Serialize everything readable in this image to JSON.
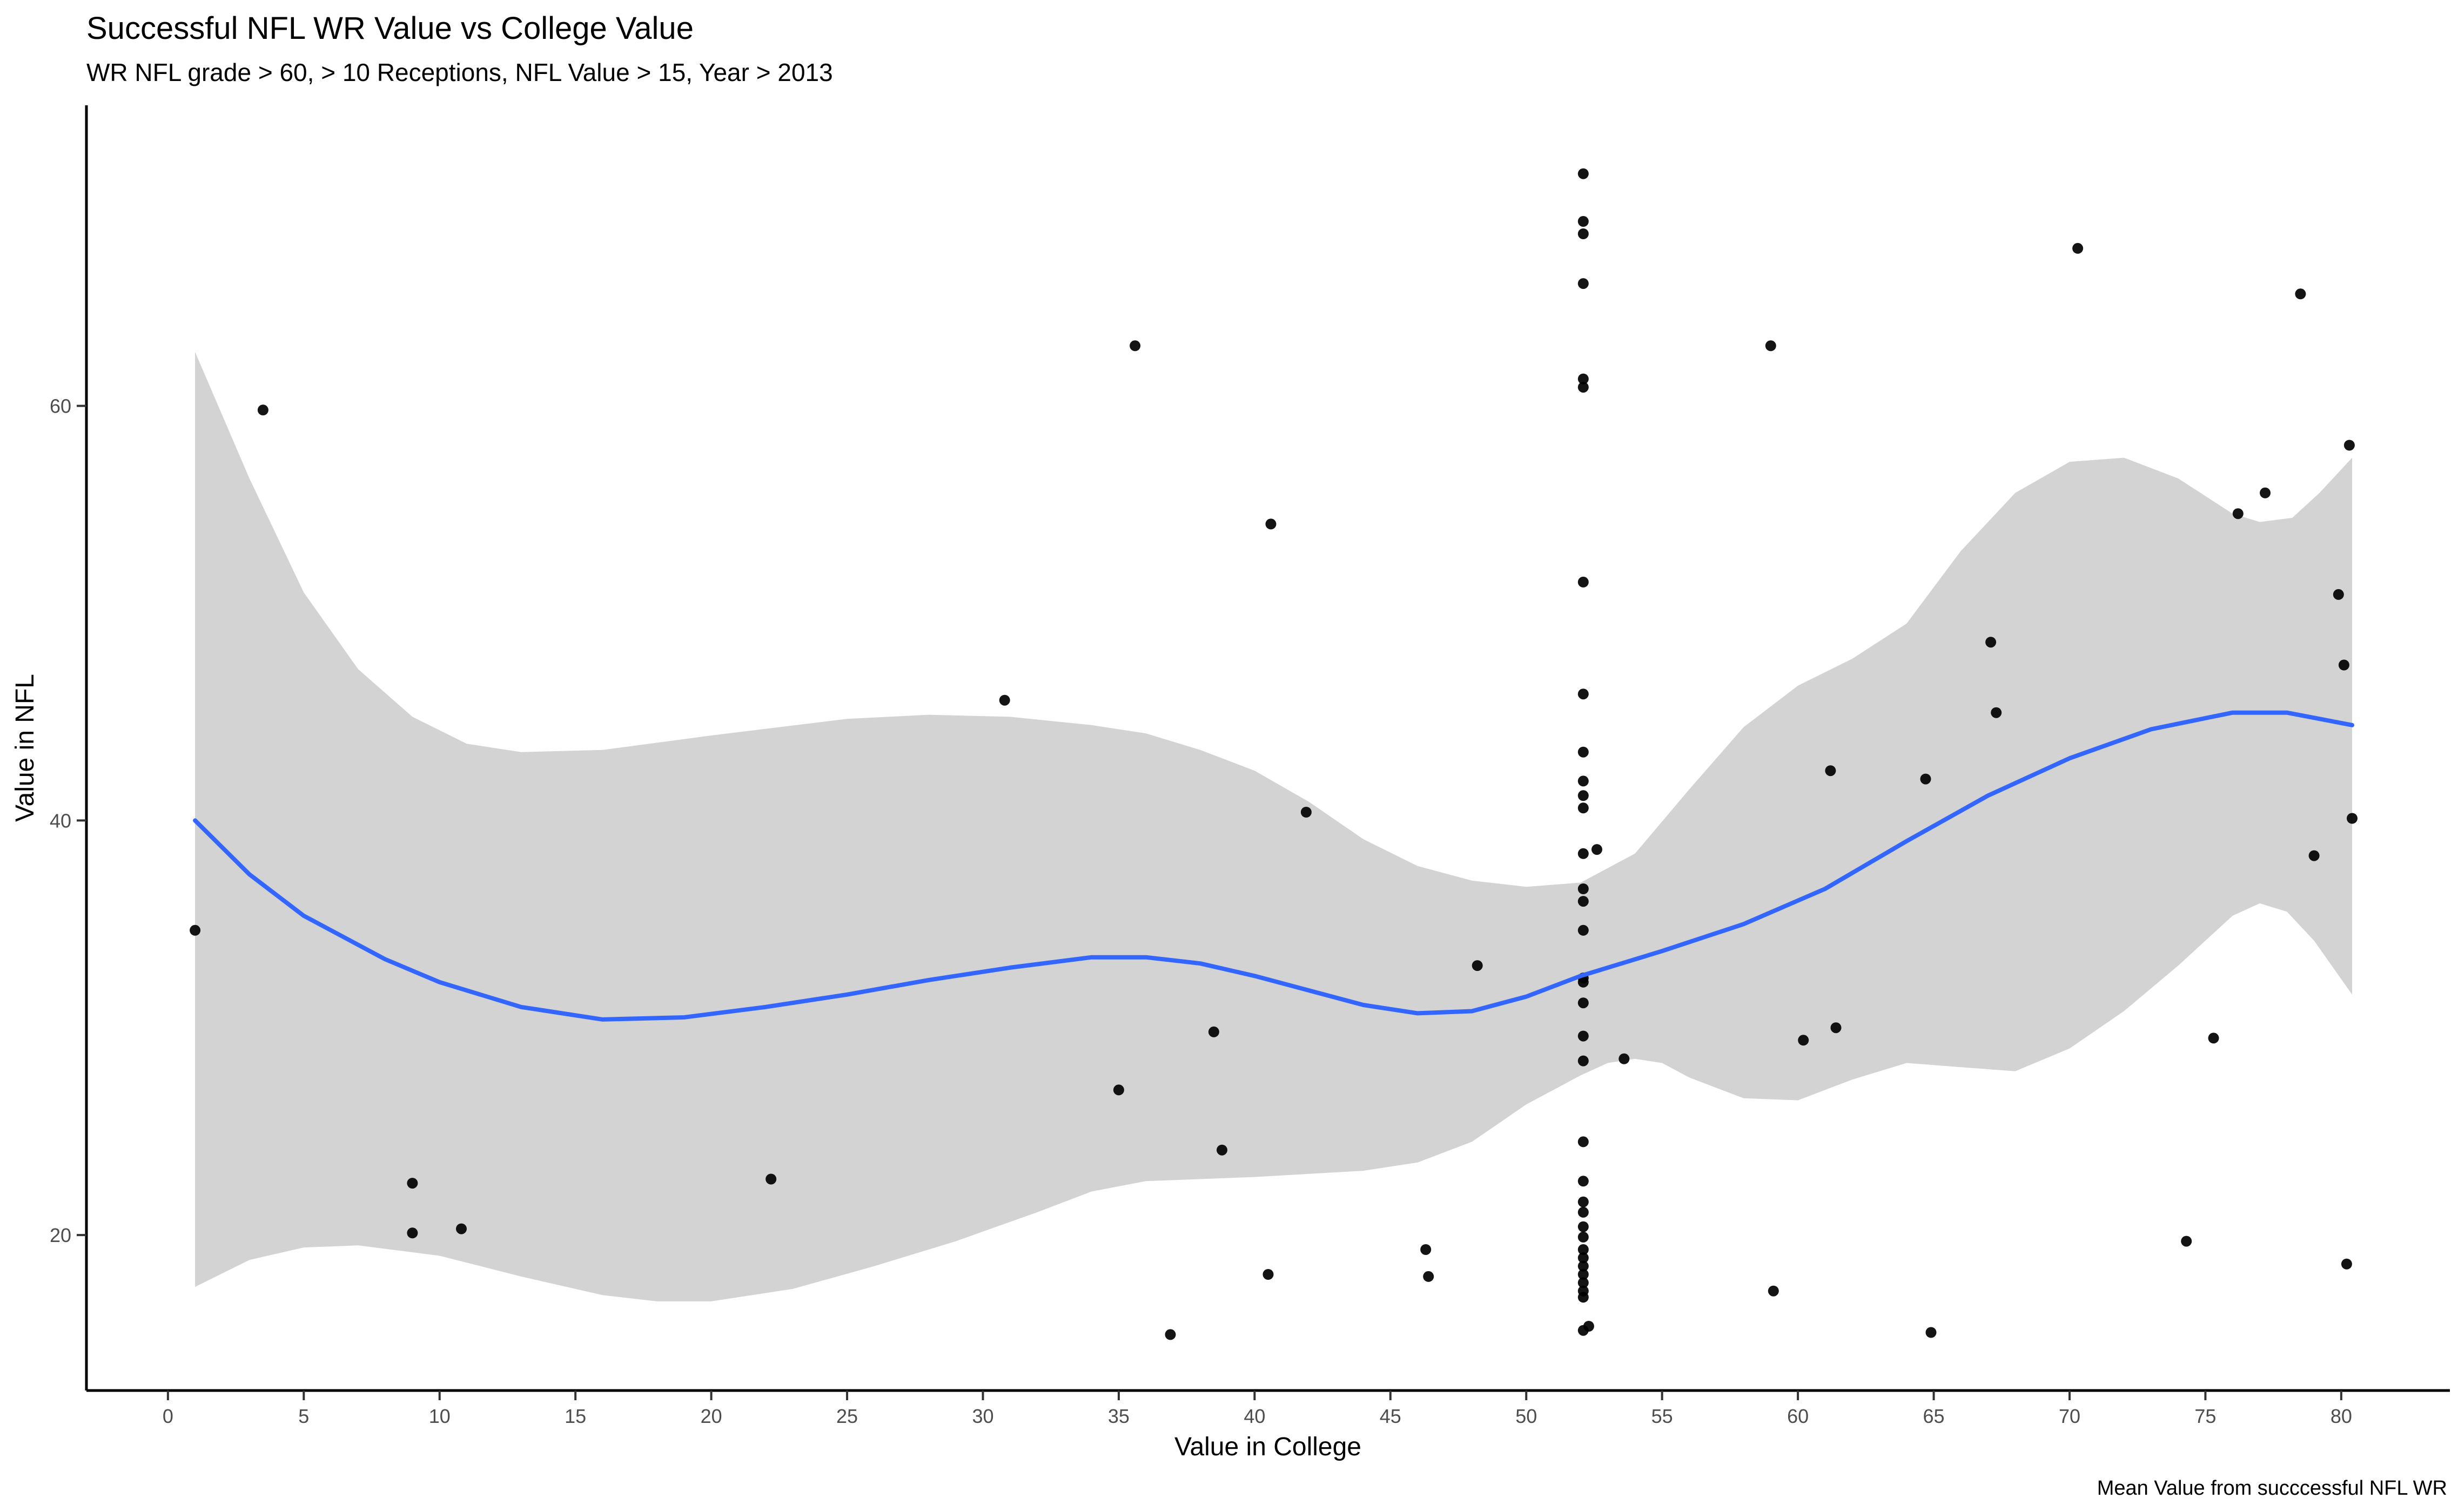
{
  "chart_data": {
    "type": "scatter",
    "title": "Successful NFL WR Value vs College Value",
    "subtitle": "WR NFL grade > 60, > 10 Receptions, NFL Value > 15, Year > 2013",
    "caption": "Mean Value from succcessful NFL WR",
    "xlabel": "Value in College",
    "ylabel": "Value in NFL",
    "xlim": [
      -3,
      84
    ],
    "ylim": [
      12.5,
      74.5
    ],
    "x_ticks": [
      0,
      5,
      10,
      15,
      20,
      25,
      30,
      35,
      40,
      45,
      50,
      55,
      60,
      65,
      70,
      75,
      80
    ],
    "y_ticks": [
      20,
      40,
      60
    ],
    "grid": false,
    "colors": {
      "points": "#000000",
      "smooth_line": "#3366FF",
      "confidence_band": "#D3D3D3"
    },
    "points": [
      [
        1,
        34.7
      ],
      [
        3.5,
        59.8
      ],
      [
        9,
        22.5
      ],
      [
        9,
        20.1
      ],
      [
        10.8,
        20.3
      ],
      [
        22.2,
        22.7
      ],
      [
        30.8,
        45.8
      ],
      [
        35,
        27.0
      ],
      [
        35.6,
        62.9
      ],
      [
        36.9,
        15.2
      ],
      [
        38.5,
        29.8
      ],
      [
        38.8,
        24.1
      ],
      [
        40.5,
        18.1
      ],
      [
        40.6,
        54.3
      ],
      [
        41.9,
        40.4
      ],
      [
        46.3,
        19.3
      ],
      [
        46.4,
        18.0
      ],
      [
        48.2,
        33.0
      ],
      [
        52.1,
        71.2
      ],
      [
        52.1,
        68.9
      ],
      [
        52.1,
        68.3
      ],
      [
        52.1,
        65.9
      ],
      [
        52.1,
        61.3
      ],
      [
        52.1,
        60.9
      ],
      [
        52.1,
        51.5
      ],
      [
        52.1,
        46.1
      ],
      [
        52.1,
        43.3
      ],
      [
        52.1,
        41.9
      ],
      [
        52.1,
        41.2
      ],
      [
        52.1,
        40.6
      ],
      [
        52.1,
        38.4
      ],
      [
        52.1,
        36.7
      ],
      [
        52.1,
        36.1
      ],
      [
        52.1,
        34.7
      ],
      [
        52.1,
        32.4
      ],
      [
        52.1,
        32.2
      ],
      [
        52.1,
        31.2
      ],
      [
        52.1,
        29.6
      ],
      [
        52.1,
        28.4
      ],
      [
        52.1,
        24.5
      ],
      [
        52.1,
        22.6
      ],
      [
        52.1,
        21.6
      ],
      [
        52.1,
        21.1
      ],
      [
        52.1,
        20.4
      ],
      [
        52.1,
        19.9
      ],
      [
        52.1,
        19.3
      ],
      [
        52.1,
        18.9
      ],
      [
        52.1,
        18.5
      ],
      [
        52.1,
        18.1
      ],
      [
        52.1,
        17.7
      ],
      [
        52.1,
        17.3
      ],
      [
        52.1,
        17.0
      ],
      [
        52.1,
        15.4
      ],
      [
        52.3,
        15.6
      ],
      [
        52.6,
        38.6
      ],
      [
        53.6,
        28.5
      ],
      [
        59.0,
        62.9
      ],
      [
        59.1,
        17.3
      ],
      [
        60.2,
        29.4
      ],
      [
        61.2,
        42.4
      ],
      [
        61.4,
        30.0
      ],
      [
        64.7,
        42.0
      ],
      [
        64.9,
        15.3
      ],
      [
        67.1,
        48.6
      ],
      [
        67.3,
        45.2
      ],
      [
        70.3,
        67.6
      ],
      [
        74.3,
        19.7
      ],
      [
        75.3,
        29.5
      ],
      [
        76.2,
        54.8
      ],
      [
        77.2,
        55.8
      ],
      [
        78.5,
        65.4
      ],
      [
        79.0,
        38.3
      ],
      [
        79.9,
        50.9
      ],
      [
        80.1,
        47.5
      ],
      [
        80.2,
        18.6
      ],
      [
        80.3,
        58.1
      ],
      [
        80.4,
        40.1
      ]
    ],
    "smooth_line": [
      [
        1,
        40.0
      ],
      [
        3,
        37.4
      ],
      [
        5,
        35.4
      ],
      [
        8,
        33.3
      ],
      [
        10,
        32.2
      ],
      [
        13,
        31.0
      ],
      [
        16,
        30.4
      ],
      [
        19,
        30.5
      ],
      [
        22,
        31.0
      ],
      [
        25,
        31.6
      ],
      [
        28,
        32.3
      ],
      [
        31,
        32.9
      ],
      [
        34,
        33.4
      ],
      [
        36,
        33.4
      ],
      [
        38,
        33.1
      ],
      [
        40,
        32.5
      ],
      [
        42,
        31.8
      ],
      [
        44,
        31.1
      ],
      [
        46,
        30.7
      ],
      [
        48,
        30.8
      ],
      [
        50,
        31.5
      ],
      [
        52,
        32.5
      ],
      [
        55,
        33.7
      ],
      [
        58,
        35.0
      ],
      [
        61,
        36.7
      ],
      [
        64,
        39.0
      ],
      [
        67,
        41.2
      ],
      [
        70,
        43.0
      ],
      [
        73,
        44.4
      ],
      [
        76,
        45.2
      ],
      [
        78,
        45.2
      ],
      [
        80.4,
        44.6
      ]
    ],
    "band_upper": [
      [
        1,
        62.6
      ],
      [
        3,
        56.5
      ],
      [
        5,
        51.0
      ],
      [
        7,
        47.3
      ],
      [
        9,
        45.0
      ],
      [
        11,
        43.7
      ],
      [
        13,
        43.3
      ],
      [
        16,
        43.4
      ],
      [
        20,
        44.1
      ],
      [
        25,
        44.9
      ],
      [
        28,
        45.1
      ],
      [
        31,
        45.0
      ],
      [
        34,
        44.6
      ],
      [
        36,
        44.2
      ],
      [
        38,
        43.4
      ],
      [
        40,
        42.4
      ],
      [
        42,
        40.9
      ],
      [
        44,
        39.1
      ],
      [
        46,
        37.8
      ],
      [
        48,
        37.1
      ],
      [
        50,
        36.8
      ],
      [
        52,
        37.0
      ],
      [
        54,
        38.4
      ],
      [
        56,
        41.5
      ],
      [
        58,
        44.5
      ],
      [
        60,
        46.5
      ],
      [
        62,
        47.8
      ],
      [
        64,
        49.5
      ],
      [
        66,
        53.0
      ],
      [
        68,
        55.8
      ],
      [
        70,
        57.3
      ],
      [
        72,
        57.5
      ],
      [
        74,
        56.5
      ],
      [
        76,
        54.8
      ],
      [
        77,
        54.4
      ],
      [
        78.2,
        54.6
      ],
      [
        79.2,
        55.8
      ],
      [
        80.4,
        57.5
      ]
    ],
    "band_lower": [
      [
        1,
        17.5
      ],
      [
        3,
        18.8
      ],
      [
        5,
        19.4
      ],
      [
        7,
        19.5
      ],
      [
        10,
        19.0
      ],
      [
        13,
        18.0
      ],
      [
        16,
        17.1
      ],
      [
        18,
        16.8
      ],
      [
        20,
        16.8
      ],
      [
        23,
        17.4
      ],
      [
        26,
        18.5
      ],
      [
        29,
        19.7
      ],
      [
        32,
        21.1
      ],
      [
        34,
        22.1
      ],
      [
        36,
        22.6
      ],
      [
        40,
        22.8
      ],
      [
        44,
        23.1
      ],
      [
        46,
        23.5
      ],
      [
        48,
        24.5
      ],
      [
        50,
        26.3
      ],
      [
        52,
        27.7
      ],
      [
        53,
        28.3
      ],
      [
        54,
        28.5
      ],
      [
        55,
        28.3
      ],
      [
        56,
        27.6
      ],
      [
        58,
        26.6
      ],
      [
        60,
        26.5
      ],
      [
        62,
        27.5
      ],
      [
        64,
        28.3
      ],
      [
        66,
        28.1
      ],
      [
        68,
        27.9
      ],
      [
        70,
        29.0
      ],
      [
        72,
        30.8
      ],
      [
        74,
        33.0
      ],
      [
        76,
        35.4
      ],
      [
        77,
        36.0
      ],
      [
        78,
        35.6
      ],
      [
        79,
        34.2
      ],
      [
        80.4,
        31.6
      ]
    ]
  }
}
